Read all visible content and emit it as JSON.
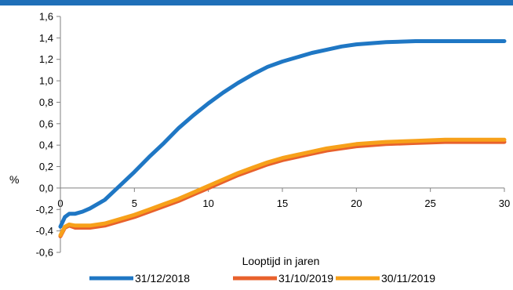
{
  "chart_data": {
    "type": "line",
    "title": "",
    "xlabel": "Looptijd in jaren",
    "ylabel": "%",
    "xlim": [
      0,
      30
    ],
    "ylim": [
      -0.6,
      1.6
    ],
    "x_ticks": [
      0,
      5,
      10,
      15,
      20,
      25,
      30
    ],
    "y_ticks": [
      -0.6,
      -0.4,
      -0.2,
      0.0,
      0.2,
      0.4,
      0.6,
      0.8,
      1.0,
      1.2,
      1.4,
      1.6
    ],
    "x_tick_labels": [
      "0",
      "5",
      "10",
      "15",
      "20",
      "25",
      "30"
    ],
    "y_tick_labels": [
      "-0,6",
      "-0,4",
      "-0,2",
      "0,0",
      "0,2",
      "0,4",
      "0,6",
      "0,8",
      "1,0",
      "1,2",
      "1,4",
      "1,6"
    ],
    "grid": false,
    "legend_position": "bottom",
    "series": [
      {
        "name": "31/12/2018",
        "color": "#1f77c4",
        "x": [
          0,
          0.3,
          0.6,
          1,
          1.5,
          2,
          3,
          4,
          5,
          6,
          7,
          8,
          9,
          10,
          11,
          12,
          13,
          14,
          15,
          16,
          17,
          18,
          19,
          20,
          22,
          24,
          26,
          28,
          30
        ],
        "y": [
          -0.36,
          -0.27,
          -0.24,
          -0.24,
          -0.22,
          -0.19,
          -0.11,
          0.02,
          0.15,
          0.29,
          0.42,
          0.56,
          0.68,
          0.79,
          0.89,
          0.98,
          1.06,
          1.13,
          1.18,
          1.22,
          1.26,
          1.29,
          1.32,
          1.34,
          1.36,
          1.37,
          1.37,
          1.37,
          1.37
        ]
      },
      {
        "name": "31/10/2019",
        "color": "#e8612c",
        "x": [
          0,
          0.3,
          0.6,
          1,
          2,
          3,
          4,
          5,
          6,
          7,
          8,
          9,
          10,
          11,
          12,
          13,
          14,
          15,
          16,
          17,
          18,
          19,
          20,
          22,
          24,
          26,
          28,
          30
        ],
        "y": [
          -0.45,
          -0.37,
          -0.35,
          -0.37,
          -0.37,
          -0.35,
          -0.31,
          -0.27,
          -0.22,
          -0.17,
          -0.12,
          -0.06,
          0.0,
          0.06,
          0.12,
          0.17,
          0.22,
          0.26,
          0.29,
          0.32,
          0.35,
          0.37,
          0.39,
          0.41,
          0.42,
          0.43,
          0.43,
          0.43
        ]
      },
      {
        "name": "30/11/2019",
        "color": "#f7a11a",
        "x": [
          0,
          0.3,
          0.6,
          1,
          2,
          3,
          4,
          5,
          6,
          7,
          8,
          9,
          10,
          11,
          12,
          13,
          14,
          15,
          16,
          17,
          18,
          19,
          20,
          22,
          24,
          26,
          28,
          30
        ],
        "y": [
          -0.44,
          -0.36,
          -0.34,
          -0.35,
          -0.35,
          -0.33,
          -0.29,
          -0.25,
          -0.2,
          -0.15,
          -0.1,
          -0.04,
          0.02,
          0.08,
          0.14,
          0.19,
          0.24,
          0.28,
          0.31,
          0.34,
          0.37,
          0.39,
          0.41,
          0.43,
          0.44,
          0.45,
          0.45,
          0.45
        ]
      }
    ]
  }
}
